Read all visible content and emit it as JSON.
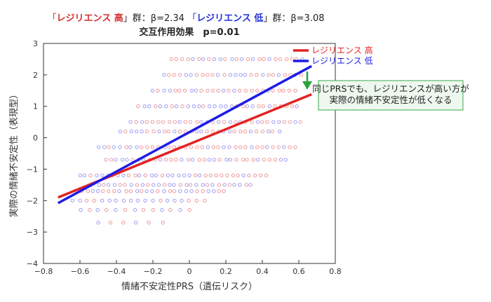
{
  "chart_data": {
    "type": "scatter",
    "title_parts": [
      {
        "text": "「",
        "color": "#d32f2f",
        "bold": false
      },
      {
        "text": "レジリエンス 高",
        "color": "#d32f2f",
        "bold": true
      },
      {
        "text": "」群：β=2.34  ",
        "color": "#222222",
        "bold": false
      },
      {
        "text": "「",
        "color": "#1f2fd8",
        "bold": false
      },
      {
        "text": "レジリエンス 低",
        "color": "#1f2fd8",
        "bold": true
      },
      {
        "text": "」群：β=3.08",
        "color": "#222222",
        "bold": false
      }
    ],
    "subtitle": "交互作用効果　p=0.01",
    "xlabel": "情緒不安定性PRS（遺伝リスク）",
    "ylabel": "実際の情緒不安定性（表現型）",
    "xlim": [
      -0.8,
      0.8
    ],
    "ylim": [
      -4,
      3
    ],
    "xticks": [
      -0.8,
      -0.6,
      -0.4,
      -0.2,
      0,
      0.2,
      0.4,
      0.6,
      0.8
    ],
    "xtick_labels": [
      "−0.8",
      "−0.6",
      "−0.4",
      "−0.2",
      "0",
      "0.2",
      "0.4",
      "0.6",
      "0.8"
    ],
    "yticks": [
      3,
      2,
      1,
      0,
      -1,
      -2,
      -3,
      -4
    ],
    "ytick_labels": [
      "3",
      "2",
      "1",
      "0",
      "−1",
      "−2",
      "−3",
      "−4"
    ],
    "series": [
      {
        "name": "レジリエンス 高",
        "color": "#e32222",
        "x": [
          -0.72,
          0.67
        ],
        "y": [
          -1.9,
          1.38
        ]
      },
      {
        "name": "レジリエンス 低",
        "color": "#1c1ce6",
        "x": [
          -0.72,
          0.67
        ],
        "y": [
          -2.08,
          2.28
        ]
      }
    ],
    "scatter_rows": [
      {
        "y": 2.5,
        "x_start": -0.1,
        "x_end": 0.62,
        "step": 0.03
      },
      {
        "y": 2.0,
        "x_start": -0.14,
        "x_end": 0.62,
        "step": 0.03
      },
      {
        "y": 1.5,
        "x_start": -0.2,
        "x_end": 0.6,
        "step": 0.03
      },
      {
        "y": 1.0,
        "x_start": -0.28,
        "x_end": 0.6,
        "step": 0.03
      },
      {
        "y": 0.5,
        "x_start": -0.32,
        "x_end": 0.62,
        "step": 0.03
      },
      {
        "y": 0.2,
        "x_start": -0.38,
        "x_end": 0.5,
        "step": 0.03
      },
      {
        "y": -0.3,
        "x_start": -0.5,
        "x_end": 0.6,
        "step": 0.03
      },
      {
        "y": -0.7,
        "x_start": -0.46,
        "x_end": 0.55,
        "step": 0.03
      },
      {
        "y": -1.2,
        "x_start": -0.6,
        "x_end": 0.42,
        "step": 0.03
      },
      {
        "y": -1.5,
        "x_start": -0.5,
        "x_end": 0.36,
        "step": 0.03
      },
      {
        "y": -1.7,
        "x_start": -0.62,
        "x_end": 0.2,
        "step": 0.03
      },
      {
        "y": -2.0,
        "x_start": -0.64,
        "x_end": 0.1,
        "step": 0.04
      },
      {
        "y": -2.3,
        "x_start": -0.6,
        "x_end": 0.0,
        "step": 0.05
      },
      {
        "y": -2.7,
        "x_start": -0.5,
        "x_end": -0.1,
        "step": 0.07
      }
    ],
    "scatter_colors": [
      "#e86a6a",
      "#7070f0"
    ],
    "annotation": {
      "lines": [
        "同じPRSでも、レジリエンスが高い方が",
        "実際の情緒不安定性が低くなる"
      ],
      "arrow_color": "#2aa43a"
    }
  }
}
